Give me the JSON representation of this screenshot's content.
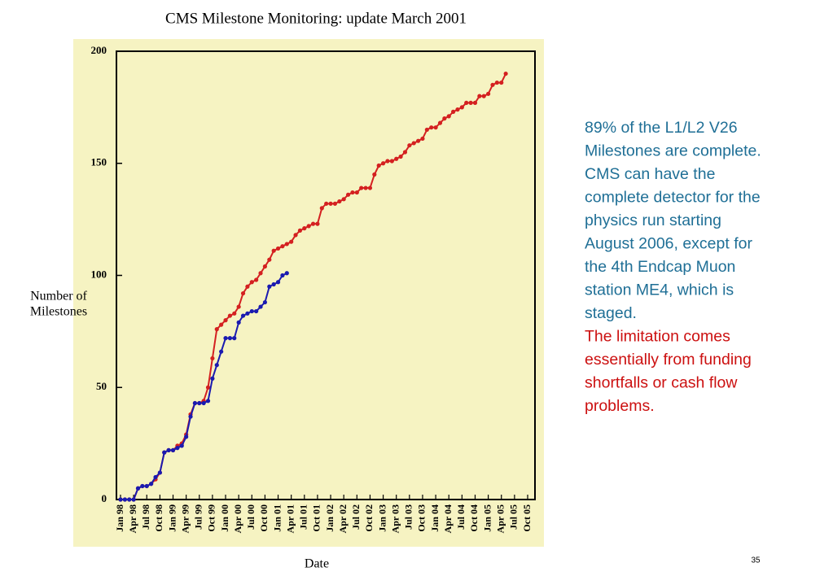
{
  "chart_data": {
    "type": "line",
    "title": "CMS Milestone Monitoring: update March 2001",
    "xlabel": "Date",
    "ylabel": [
      "Number of",
      "Milestones"
    ],
    "categories": [
      "Jan 98",
      null,
      null,
      "Apr 98",
      null,
      null,
      "Jul 98",
      null,
      null,
      "Oct 98",
      null,
      null,
      "Jan 99",
      null,
      null,
      "Apr 99",
      null,
      null,
      "Jul 99",
      null,
      null,
      "Oct 99",
      null,
      null,
      "Jan 00",
      null,
      null,
      "Apr 00",
      null,
      null,
      "Jul 00",
      null,
      null,
      "Oct 00",
      null,
      null,
      "Jan 01",
      null,
      null,
      "Apr 01",
      null,
      null,
      "Jul 01",
      null,
      null,
      "Oct 01",
      null,
      null,
      "Jan 02",
      null,
      null,
      "Apr 02",
      null,
      null,
      "Jul 02",
      null,
      null,
      "Oct 02",
      null,
      null,
      "Jan 03",
      null,
      null,
      "Apr 03",
      null,
      null,
      "Jul 03",
      null,
      null,
      "Oct 03",
      null,
      null,
      "Jan 04",
      null,
      null,
      "Apr 04",
      null,
      null,
      "Jul 04",
      null,
      null,
      "Oct 04",
      null,
      null,
      "Jan 05",
      null,
      null,
      "Apr 05",
      null,
      null,
      "Jul 05",
      null,
      null,
      "Oct 05"
    ],
    "series": [
      {
        "color": "#d42020",
        "values": [
          0,
          0,
          0,
          0,
          5,
          6,
          6,
          7,
          9,
          12,
          21,
          22,
          22,
          24,
          25,
          29,
          38,
          43,
          43,
          44,
          50,
          63,
          76,
          78,
          80,
          82,
          83,
          86,
          92,
          95,
          97,
          98,
          101,
          104,
          107,
          111,
          112,
          113,
          114,
          115,
          118,
          120,
          121,
          122,
          123,
          123,
          130,
          132,
          132,
          132,
          133,
          134,
          136,
          137,
          137,
          139,
          139,
          139,
          145,
          149,
          150,
          151,
          151,
          152,
          153,
          155,
          158,
          159,
          160,
          161,
          165,
          166,
          166,
          168,
          170,
          171,
          173,
          174,
          175,
          177,
          177,
          177,
          180,
          180,
          181,
          185,
          186,
          186,
          190,
          null,
          null,
          null,
          null,
          null
        ]
      },
      {
        "color": "#1a1ab0",
        "values": [
          0,
          0,
          0,
          0,
          5,
          6,
          6,
          7,
          10,
          12,
          21,
          22,
          22,
          23,
          24,
          28,
          37,
          43,
          43,
          43,
          44,
          54,
          60,
          66,
          72,
          72,
          72,
          79,
          82,
          83,
          84,
          84,
          86,
          88,
          95,
          96,
          97,
          100,
          101,
          null,
          null,
          null,
          null,
          null,
          null,
          null,
          null,
          null,
          null,
          null,
          null,
          null,
          null,
          null,
          null,
          null,
          null,
          null,
          null,
          null,
          null,
          null,
          null,
          null,
          null,
          null,
          null,
          null,
          null,
          null,
          null,
          null,
          null,
          null,
          null,
          null,
          null,
          null,
          null,
          null,
          null,
          null,
          null,
          null,
          null,
          null,
          null,
          null,
          null,
          null,
          null,
          null,
          null,
          null
        ]
      }
    ],
    "ylim": [
      0,
      200
    ],
    "yticks": [
      0,
      50,
      100,
      150,
      200
    ],
    "background": "#f6f3c2"
  },
  "notes": {
    "blue_lines": [
      "89% of the L1/L2 V26",
      "Milestones are complete.",
      "CMS can have the",
      "complete detector for the",
      "physics run starting",
      "August 2006, except for",
      "the 4th Endcap Muon",
      "station ME4, which is",
      "staged."
    ],
    "red_lines": [
      "The limitation comes",
      "essentially from funding",
      "shortfalls or cash flow",
      "problems."
    ],
    "page_number": "35"
  }
}
